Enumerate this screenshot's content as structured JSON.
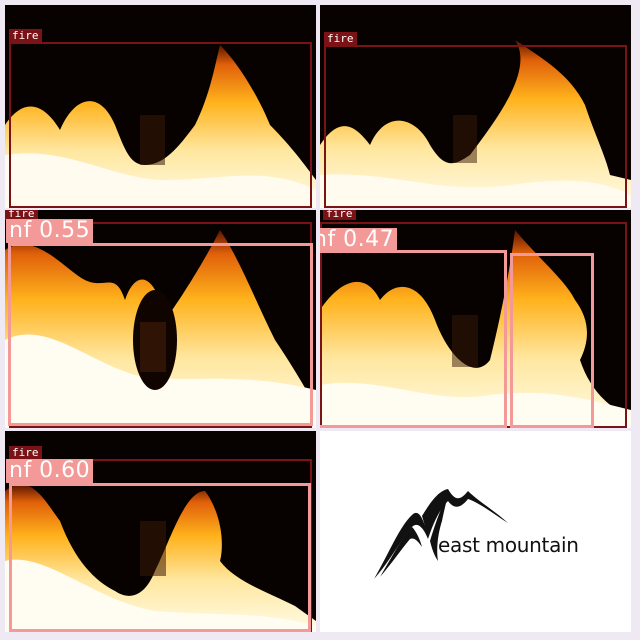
{
  "tiles": {
    "t1": {
      "gt_label": "fire"
    },
    "t2": {
      "gt_label": "fire"
    },
    "t3": {
      "gt_label": "fire",
      "pred_label": "nf 0.55"
    },
    "t4": {
      "gt_label": "fire",
      "pred_label": "nf 0.47"
    },
    "t5": {
      "gt_label": "fire",
      "pred_label": "nf 0.60"
    },
    "t6": {
      "logo_text": "east mountain"
    }
  },
  "colors": {
    "gt_box": "#7a1216",
    "pred_box": "#f39a98",
    "background": "#efe9f4"
  }
}
